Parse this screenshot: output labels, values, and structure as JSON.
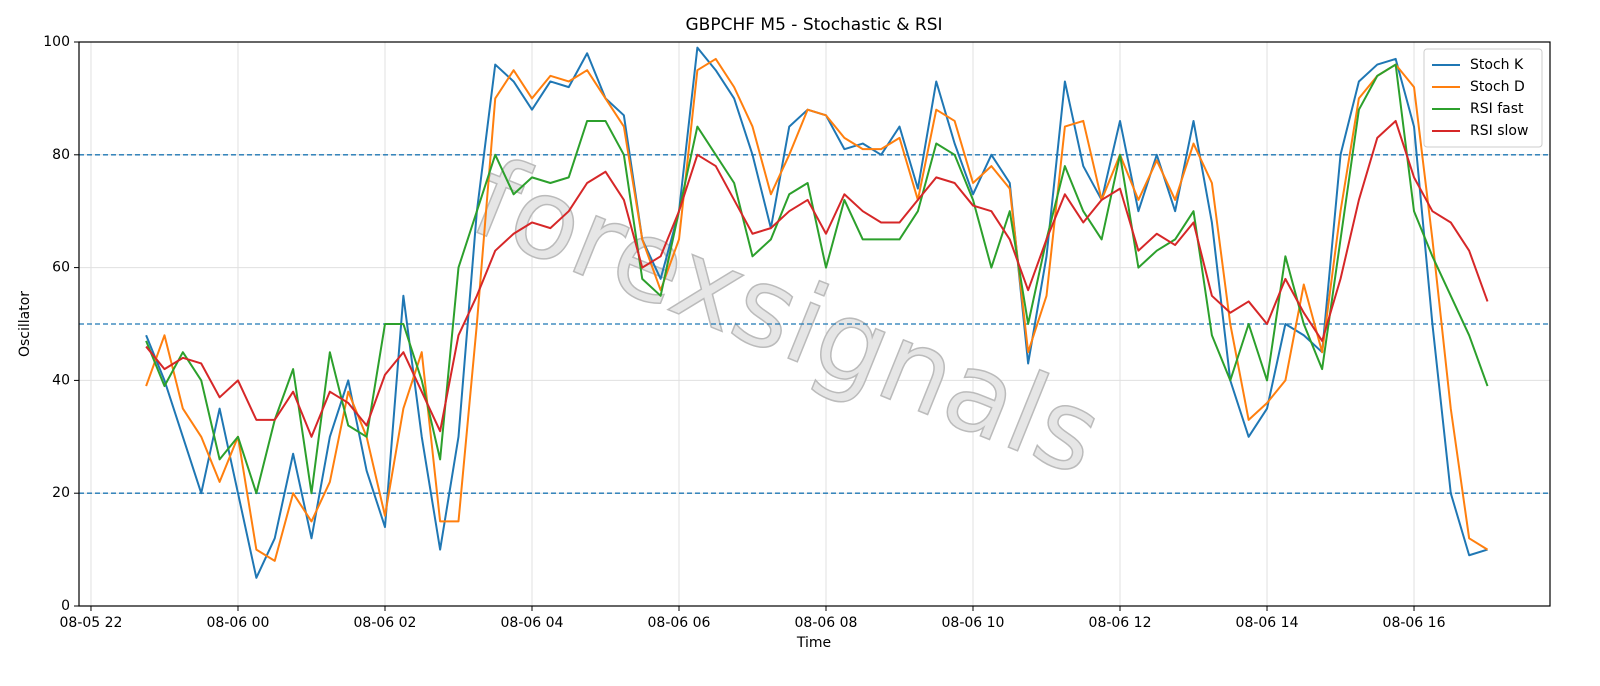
{
  "chart_data": {
    "type": "line",
    "title": "GBPCHF M5 - Stochastic & RSI",
    "xlabel": "Time",
    "ylabel": "Oscillator",
    "watermark": "forexsignals",
    "x": [
      -1.25,
      -1,
      -0.75,
      -0.5,
      -0.25,
      0,
      0.25,
      0.5,
      0.75,
      1,
      1.25,
      1.5,
      1.75,
      2,
      2.25,
      2.5,
      2.75,
      3,
      3.25,
      3.5,
      3.75,
      4,
      4.25,
      4.5,
      4.75,
      5,
      5.25,
      5.5,
      5.75,
      6,
      6.25,
      6.5,
      6.75,
      7,
      7.25,
      7.5,
      7.75,
      8,
      8.25,
      8.5,
      8.75,
      9,
      9.25,
      9.5,
      9.75,
      10,
      10.25,
      10.5,
      10.75,
      11,
      11.25,
      11.5,
      11.75,
      12,
      12.25,
      12.5,
      12.75,
      13,
      13.25,
      13.5,
      13.75,
      14,
      14.25,
      14.5,
      14.75,
      15,
      15.25,
      15.5,
      15.75,
      16,
      16.25,
      16.5,
      16.75,
      17
    ],
    "series": [
      {
        "name": "Stoch K",
        "color": "#1f77b4",
        "values": [
          48,
          40,
          30,
          20,
          35,
          20,
          5,
          12,
          27,
          12,
          30,
          40,
          24,
          14,
          55,
          30,
          10,
          30,
          70,
          96,
          93,
          88,
          93,
          92,
          98,
          90,
          87,
          65,
          58,
          70,
          99,
          95,
          90,
          80,
          67,
          85,
          88,
          87,
          81,
          82,
          80,
          85,
          74,
          93,
          82,
          73,
          80,
          75,
          43,
          62,
          93,
          78,
          72,
          86,
          70,
          80,
          70,
          86,
          68,
          40,
          30,
          35,
          50,
          48,
          45,
          80,
          93,
          96,
          97,
          85,
          50,
          20,
          9,
          10
        ]
      },
      {
        "name": "Stoch D",
        "color": "#ff7f0e",
        "values": [
          39,
          48,
          35,
          30,
          22,
          30,
          10,
          8,
          20,
          15,
          22,
          38,
          30,
          16,
          35,
          45,
          15,
          15,
          50,
          90,
          95,
          90,
          94,
          93,
          95,
          90,
          85,
          65,
          56,
          65,
          95,
          97,
          92,
          85,
          73,
          80,
          88,
          87,
          83,
          81,
          81,
          83,
          72,
          88,
          86,
          75,
          78,
          74,
          45,
          55,
          85,
          86,
          72,
          80,
          72,
          79,
          72,
          82,
          75,
          50,
          33,
          36,
          40,
          57,
          45,
          70,
          90,
          94,
          96,
          92,
          65,
          35,
          12,
          10
        ]
      },
      {
        "name": "RSI fast",
        "color": "#2ca02c",
        "values": [
          47,
          39,
          45,
          40,
          26,
          30,
          20,
          33,
          42,
          20,
          45,
          32,
          30,
          50,
          50,
          40,
          26,
          60,
          70,
          80,
          73,
          76,
          75,
          76,
          86,
          86,
          80,
          58,
          55,
          70,
          85,
          80,
          75,
          62,
          65,
          73,
          75,
          60,
          72,
          65,
          65,
          65,
          70,
          82,
          80,
          72,
          60,
          70,
          50,
          65,
          78,
          70,
          65,
          80,
          60,
          63,
          65,
          70,
          48,
          40,
          50,
          40,
          62,
          50,
          42,
          65,
          88,
          94,
          96,
          70,
          62,
          55,
          48,
          39
        ]
      },
      {
        "name": "RSI slow",
        "color": "#d62728",
        "values": [
          46,
          42,
          44,
          43,
          37,
          40,
          33,
          33,
          38,
          30,
          38,
          36,
          32,
          41,
          45,
          38,
          31,
          48,
          55,
          63,
          66,
          68,
          67,
          70,
          75,
          77,
          72,
          60,
          62,
          70,
          80,
          78,
          72,
          66,
          67,
          70,
          72,
          66,
          73,
          70,
          68,
          68,
          72,
          76,
          75,
          71,
          70,
          65,
          56,
          65,
          73,
          68,
          72,
          74,
          63,
          66,
          64,
          68,
          55,
          52,
          54,
          50,
          58,
          52,
          47,
          58,
          72,
          83,
          86,
          76,
          70,
          68,
          63,
          54
        ]
      }
    ],
    "xlim": [
      -2.163,
      17.85
    ],
    "xticks": [
      {
        "value": -2,
        "label": "08-05 22"
      },
      {
        "value": 0,
        "label": "08-06 00"
      },
      {
        "value": 2,
        "label": "08-06 02"
      },
      {
        "value": 4,
        "label": "08-06 04"
      },
      {
        "value": 6,
        "label": "08-06 06"
      },
      {
        "value": 8,
        "label": "08-06 08"
      },
      {
        "value": 10,
        "label": "08-06 10"
      },
      {
        "value": 12,
        "label": "08-06 12"
      },
      {
        "value": 14,
        "label": "08-06 14"
      },
      {
        "value": 16,
        "label": "08-06 16"
      }
    ],
    "ylim": [
      0,
      100
    ],
    "yticks": [
      0,
      20,
      40,
      60,
      80,
      100
    ],
    "reference_lines": [
      20,
      50,
      80
    ],
    "reference_color": "#1f77b4",
    "grid": true,
    "legend": "upper right"
  }
}
